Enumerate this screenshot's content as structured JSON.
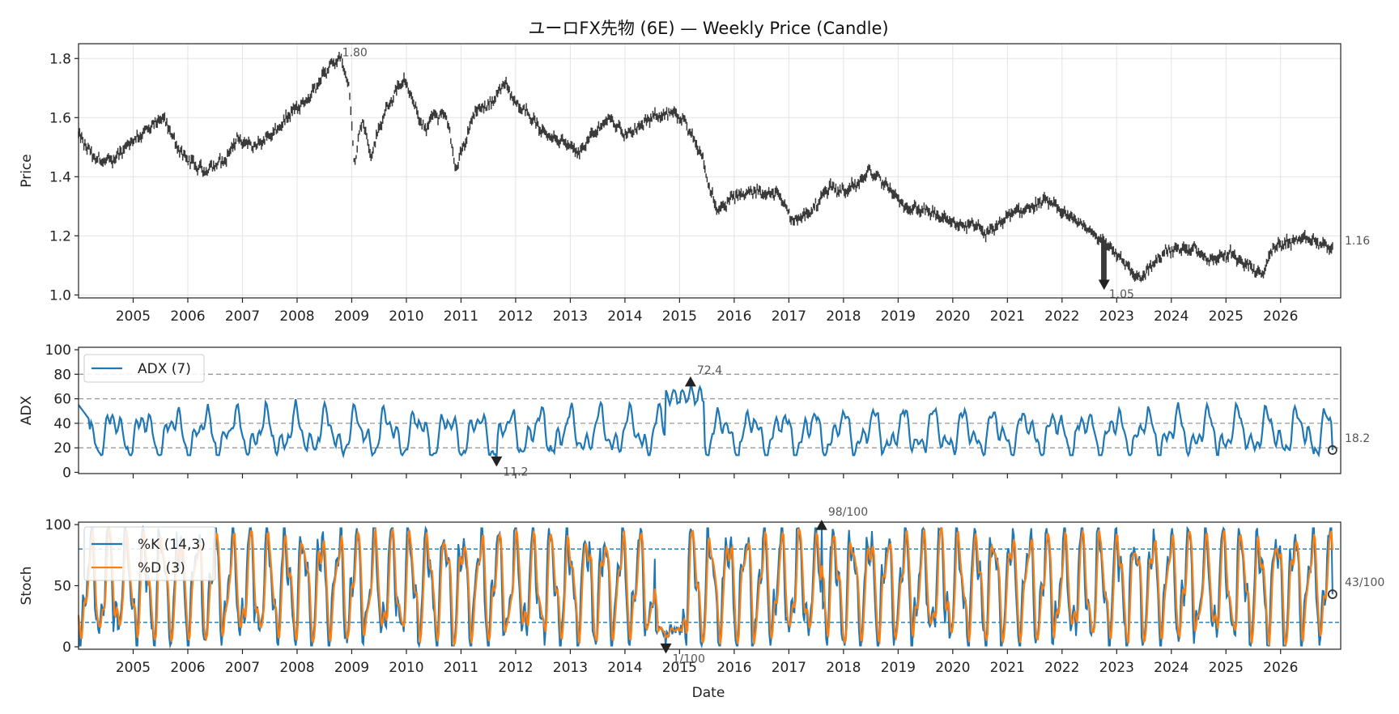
{
  "chart_data": {
    "type": "line",
    "title": "ユーロFX先物 (6E) — Weekly Price (Candle)",
    "xlabel": "Date",
    "x_years": [
      "2005",
      "2006",
      "2007",
      "2008",
      "2009",
      "2010",
      "2011",
      "2012",
      "2013",
      "2014",
      "2015",
      "2016",
      "2017",
      "2018",
      "2019",
      "2020",
      "2021",
      "2022",
      "2023",
      "2024",
      "2025",
      "2026"
    ],
    "x_range": [
      "2004-01",
      "2026-06"
    ],
    "colors": {
      "price": "#3a3a3a",
      "adx": "#1f77b4",
      "k": "#1f77b4",
      "d": "#ff7f0e",
      "ref_gray": "#999999",
      "ref_blue": "#1f77b4",
      "marker": "#222222"
    },
    "panels": {
      "price": {
        "ylabel": "Price",
        "ylim": [
          0.99,
          1.85
        ],
        "yticks": [
          "1.0",
          "1.2",
          "1.4",
          "1.6",
          "1.8"
        ],
        "grid": true,
        "series_name": "",
        "anchors": [
          [
            2004.0,
            1.54
          ],
          [
            2004.3,
            1.46
          ],
          [
            2004.6,
            1.45
          ],
          [
            2004.95,
            1.52
          ],
          [
            2005.2,
            1.55
          ],
          [
            2005.55,
            1.6
          ],
          [
            2005.9,
            1.47
          ],
          [
            2006.3,
            1.42
          ],
          [
            2006.7,
            1.46
          ],
          [
            2006.9,
            1.53
          ],
          [
            2007.2,
            1.5
          ],
          [
            2007.6,
            1.55
          ],
          [
            2007.9,
            1.62
          ],
          [
            2008.2,
            1.66
          ],
          [
            2008.5,
            1.75
          ],
          [
            2008.6,
            1.78
          ],
          [
            2008.8,
            1.8
          ],
          [
            2008.95,
            1.7
          ],
          [
            2009.05,
            1.45
          ],
          [
            2009.2,
            1.6
          ],
          [
            2009.35,
            1.47
          ],
          [
            2009.6,
            1.62
          ],
          [
            2009.95,
            1.73
          ],
          [
            2010.35,
            1.55
          ],
          [
            2010.45,
            1.61
          ],
          [
            2010.75,
            1.6
          ],
          [
            2010.9,
            1.42
          ],
          [
            2011.25,
            1.62
          ],
          [
            2011.55,
            1.65
          ],
          [
            2011.8,
            1.72
          ],
          [
            2011.95,
            1.66
          ],
          [
            2012.2,
            1.62
          ],
          [
            2012.5,
            1.55
          ],
          [
            2012.85,
            1.52
          ],
          [
            2013.15,
            1.48
          ],
          [
            2013.35,
            1.53
          ],
          [
            2013.7,
            1.6
          ],
          [
            2014.05,
            1.54
          ],
          [
            2014.5,
            1.6
          ],
          [
            2014.85,
            1.62
          ],
          [
            2015.1,
            1.58
          ],
          [
            2015.4,
            1.48
          ],
          [
            2015.55,
            1.36
          ],
          [
            2015.7,
            1.28
          ],
          [
            2015.95,
            1.33
          ],
          [
            2016.4,
            1.35
          ],
          [
            2016.8,
            1.34
          ],
          [
            2017.1,
            1.25
          ],
          [
            2017.4,
            1.28
          ],
          [
            2017.75,
            1.37
          ],
          [
            2017.95,
            1.35
          ],
          [
            2018.3,
            1.38
          ],
          [
            2018.45,
            1.42
          ],
          [
            2018.8,
            1.37
          ],
          [
            2019.1,
            1.3
          ],
          [
            2019.6,
            1.28
          ],
          [
            2020.0,
            1.24
          ],
          [
            2020.5,
            1.23
          ],
          [
            2020.6,
            1.2
          ],
          [
            2021.1,
            1.28
          ],
          [
            2021.5,
            1.3
          ],
          [
            2021.7,
            1.32
          ],
          [
            2022.1,
            1.27
          ],
          [
            2022.5,
            1.22
          ],
          [
            2022.95,
            1.15
          ],
          [
            2023.4,
            1.05
          ],
          [
            2023.6,
            1.09
          ],
          [
            2023.9,
            1.15
          ],
          [
            2024.4,
            1.16
          ],
          [
            2024.7,
            1.12
          ],
          [
            2025.1,
            1.14
          ],
          [
            2025.5,
            1.09
          ],
          [
            2025.65,
            1.06
          ],
          [
            2025.85,
            1.16
          ],
          [
            2026.15,
            1.18
          ],
          [
            2026.5,
            1.19
          ],
          [
            2026.9,
            1.16
          ],
          [
            2027.05,
            1.16
          ]
        ],
        "max_annotation": {
          "x": 2008.78,
          "y": 1.8,
          "label": "1.80"
        },
        "min_annotation": {
          "x": 2022.77,
          "y": 1.05,
          "label": "1.05"
        },
        "last_annotation": {
          "label": "1.16"
        }
      },
      "adx": {
        "ylabel": "ADX",
        "ylim": [
          -1,
          102
        ],
        "yticks": [
          "0",
          "20",
          "40",
          "60",
          "80",
          "100"
        ],
        "ref_lines": [
          20,
          40,
          60,
          80
        ],
        "series_name": "ADX (7)",
        "max_annotation": {
          "x": 2015.2,
          "y": 72.4,
          "label": "72.4"
        },
        "min_annotation": {
          "x": 2011.65,
          "y": 11.2,
          "label": "11.2"
        },
        "last_annotation": {
          "y": 18.2,
          "label": "18.2"
        }
      },
      "stoch": {
        "ylabel": "Stoch",
        "ylim": [
          -2,
          102
        ],
        "yticks": [
          "0",
          "50",
          "100"
        ],
        "ref_lines": [
          20,
          80
        ],
        "k_name": "%K (14,3)",
        "d_name": "%D (3)",
        "max_annotation": {
          "x": 2017.6,
          "y": 98,
          "label": "98/100"
        },
        "min_annotation": {
          "x": 2014.75,
          "y": 1,
          "label": "1/100"
        },
        "last_annotation": {
          "y": 43,
          "label": "43/100"
        }
      }
    }
  }
}
